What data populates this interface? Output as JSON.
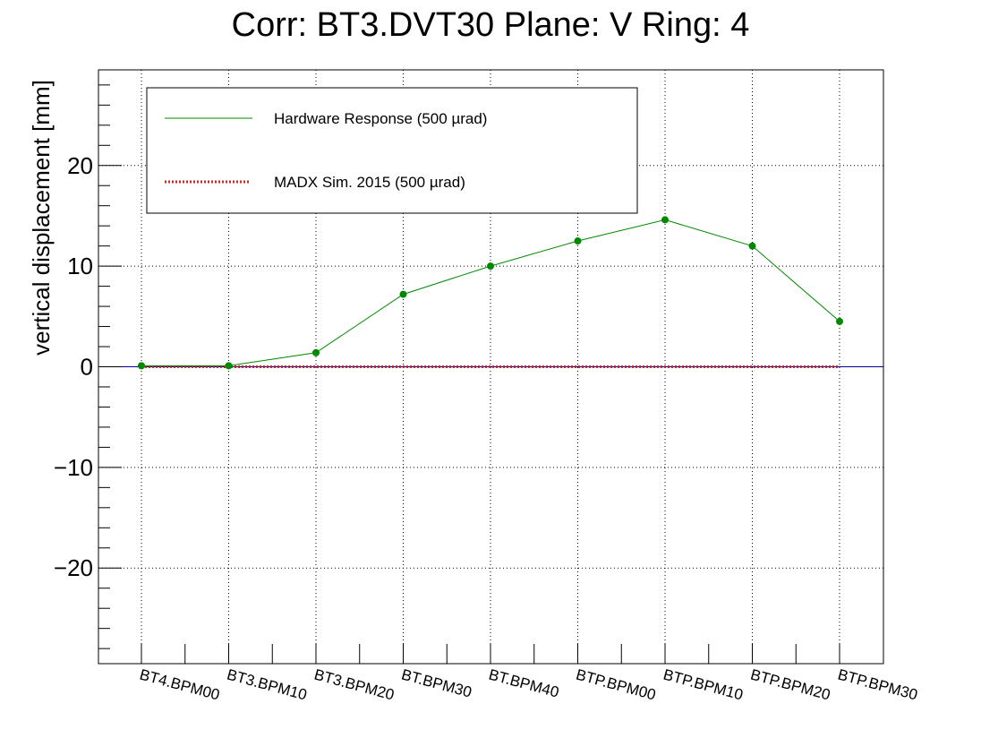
{
  "chart_data": {
    "type": "line",
    "title": "Corr: BT3.DVT30 Plane: V Ring: 4",
    "xlabel": "",
    "ylabel": "vertical displacement [mm]",
    "categories": [
      "BT4.BPM00",
      "BT3.BPM10",
      "BT3.BPM20",
      "BT.BPM30",
      "BT.BPM40",
      "BTP.BPM00",
      "BTP.BPM10",
      "BTP.BPM20",
      "BTP.BPM30"
    ],
    "ylim": [
      -29.5,
      29.5
    ],
    "yticks": [
      -20,
      -10,
      0,
      10,
      20
    ],
    "ytick_labels": [
      "−20",
      "−10",
      "0",
      "10",
      "20"
    ],
    "grid": true,
    "legend_position": "top-left",
    "series": [
      {
        "name": "Hardware Response (500 µrad)",
        "values": [
          0.1,
          0.1,
          1.4,
          7.2,
          10.0,
          12.5,
          14.6,
          12.0,
          4.5
        ],
        "color": "#008800",
        "style": "solid-markers"
      },
      {
        "name": "MADX Sim. 2015 (500 µrad)",
        "values": [
          0,
          0,
          0,
          0,
          0,
          0,
          0,
          0,
          0
        ],
        "color": "#c82828",
        "style": "dotted"
      }
    ],
    "zero_line_color": "#000099"
  }
}
